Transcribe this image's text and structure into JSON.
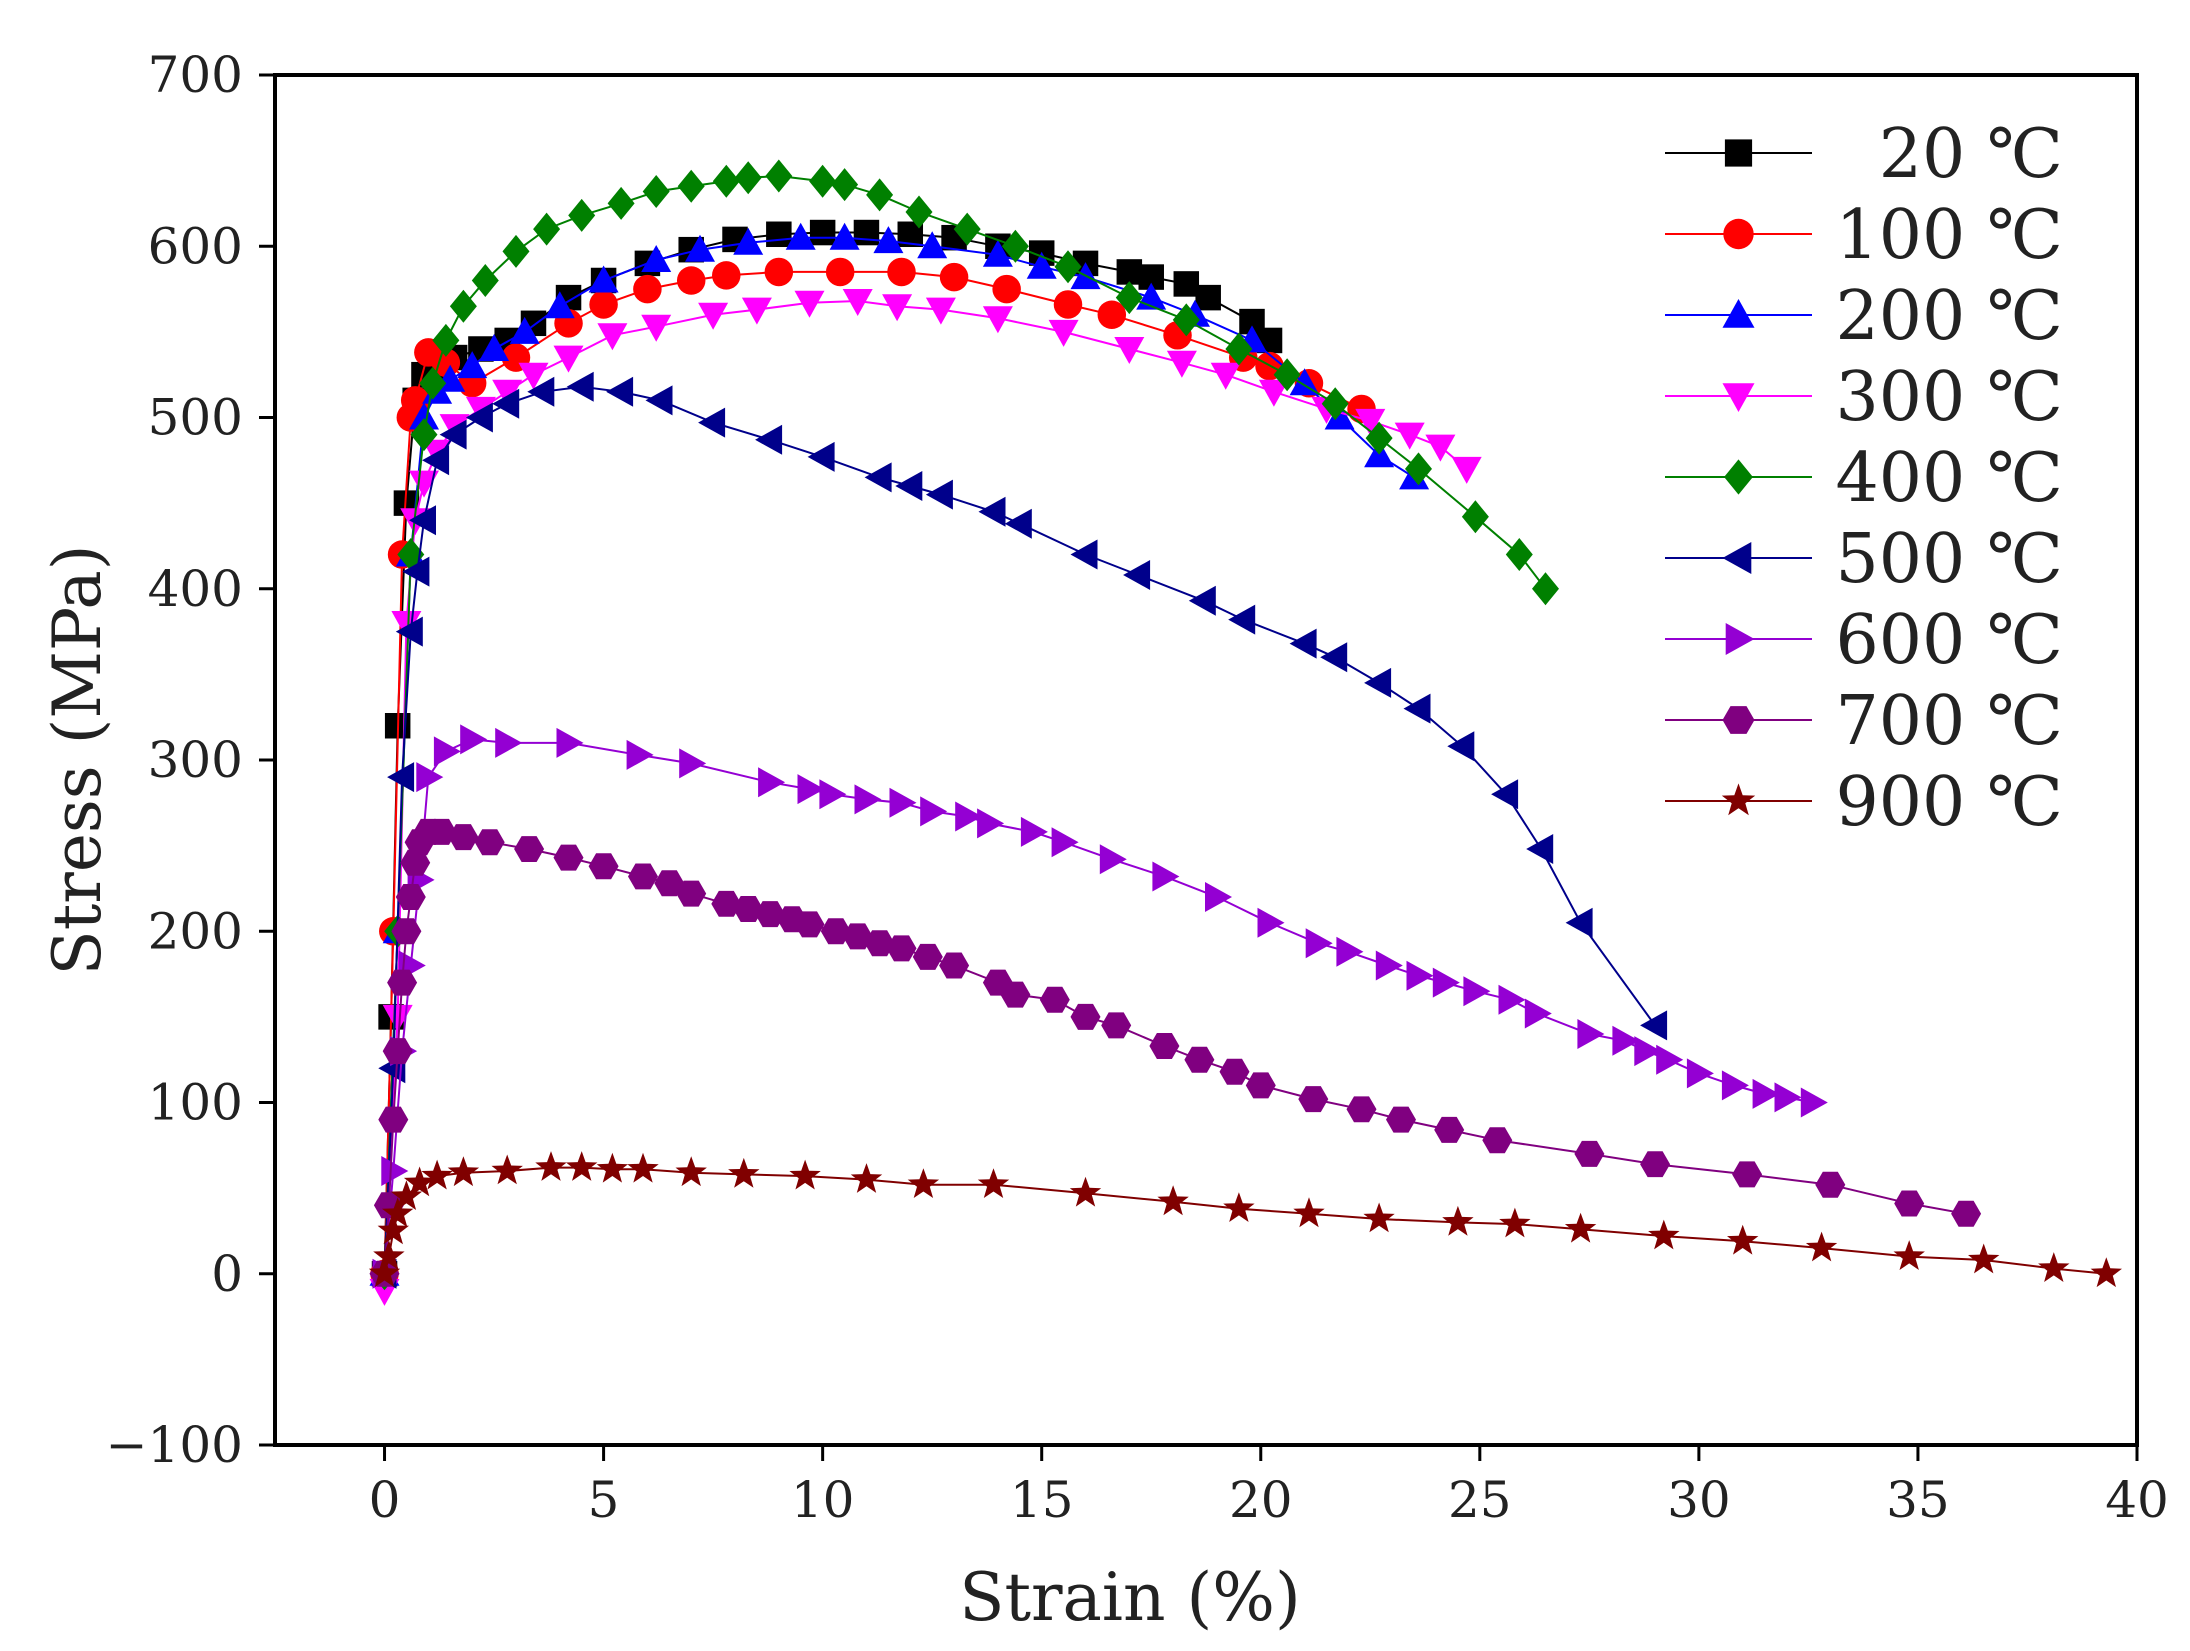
{
  "chart_data": {
    "type": "line",
    "title": "",
    "xlabel": "Strain (%)",
    "ylabel": "Stress (MPa)",
    "xlim": [
      -2.5,
      40
    ],
    "ylim": [
      -100,
      700
    ],
    "xticks": [
      0,
      5,
      10,
      15,
      20,
      25,
      30,
      35,
      40
    ],
    "yticks": [
      -100,
      0,
      100,
      200,
      300,
      400,
      500,
      600,
      700
    ],
    "legend_position": "top-right",
    "grid": false,
    "series": [
      {
        "name": "20 ℃",
        "color": "#000000",
        "marker": "square",
        "x": [
          0,
          0.15,
          0.3,
          0.5,
          0.7,
          0.9,
          1.2,
          1.6,
          2.2,
          2.8,
          3.4,
          4.2,
          5,
          6,
          7,
          8,
          9,
          10,
          11,
          12,
          13,
          14,
          15,
          16,
          17,
          17.5,
          18.3,
          18.8,
          19.8,
          20.2
        ],
        "y": [
          0,
          150,
          320,
          450,
          510,
          525,
          530,
          535,
          540,
          545,
          555,
          570,
          580,
          590,
          598,
          604,
          607,
          608,
          608,
          607,
          605,
          600,
          596,
          590,
          585,
          582,
          578,
          570,
          556,
          545
        ]
      },
      {
        "name": "100 ℃",
        "color": "#ff0000",
        "marker": "circle",
        "x": [
          0,
          0.2,
          0.4,
          0.6,
          0.7,
          1.0,
          1.4,
          2.0,
          3.0,
          4.2,
          5.0,
          6.0,
          7.0,
          7.8,
          9.0,
          10.4,
          11.8,
          13.0,
          14.2,
          15.6,
          16.6,
          18.1,
          19.6,
          20.2,
          21.1,
          22.3
        ],
        "y": [
          0,
          200,
          420,
          500,
          510,
          538,
          532,
          520,
          535,
          555,
          566,
          575,
          580,
          583,
          585,
          585,
          585,
          582,
          575,
          566,
          560,
          548,
          535,
          530,
          520,
          505
        ]
      },
      {
        "name": "200 ℃",
        "color": "#0000ff",
        "marker": "triangle-up",
        "x": [
          0,
          0.3,
          0.6,
          0.9,
          1.2,
          1.5,
          2.0,
          2.5,
          3.2,
          4.0,
          5.0,
          6.2,
          7.2,
          8.3,
          9.5,
          10.5,
          11.5,
          12.5,
          14.0,
          15.0,
          16.0,
          17.5,
          18.5,
          19.8,
          21.0,
          21.8,
          22.7,
          23.5
        ],
        "y": [
          0,
          200,
          420,
          500,
          515,
          522,
          530,
          540,
          550,
          565,
          580,
          592,
          598,
          602,
          605,
          605,
          603,
          600,
          595,
          588,
          582,
          570,
          560,
          545,
          520,
          500,
          478,
          465
        ]
      },
      {
        "name": "300 ℃",
        "color": "#ff00ff",
        "marker": "triangle-down",
        "x": [
          0,
          0.3,
          0.5,
          0.7,
          0.9,
          1.2,
          1.6,
          2.2,
          2.8,
          3.4,
          4.2,
          5.2,
          6.2,
          7.5,
          8.5,
          9.7,
          10.8,
          11.7,
          12.7,
          14.0,
          15.5,
          17.0,
          18.2,
          19.2,
          20.3,
          21.5,
          22.5,
          23.4,
          24.1,
          24.7
        ],
        "y": [
          -10,
          150,
          380,
          440,
          462,
          480,
          495,
          505,
          515,
          525,
          535,
          548,
          553,
          560,
          563,
          567,
          568,
          565,
          563,
          558,
          550,
          540,
          532,
          525,
          515,
          505,
          498,
          490,
          483,
          470
        ]
      },
      {
        "name": "400 ℃",
        "color": "#008000",
        "marker": "diamond",
        "x": [
          0,
          0.3,
          0.6,
          0.9,
          1.1,
          1.4,
          1.8,
          2.3,
          3.0,
          3.7,
          4.5,
          5.4,
          6.2,
          7.0,
          7.8,
          8.3,
          9.0,
          10.0,
          10.5,
          11.3,
          12.2,
          13.3,
          14.4,
          15.6,
          17.0,
          18.3,
          19.5,
          20.6,
          21.7,
          22.7,
          23.6,
          24.9,
          25.9,
          26.5
        ],
        "y": [
          0,
          200,
          420,
          490,
          520,
          545,
          565,
          580,
          597,
          610,
          618,
          625,
          632,
          635,
          638,
          640,
          641,
          638,
          636,
          630,
          620,
          610,
          600,
          588,
          570,
          557,
          540,
          525,
          508,
          488,
          470,
          442,
          420,
          400
        ]
      },
      {
        "name": "500 ℃",
        "color": "#00008b",
        "marker": "triangle-left",
        "x": [
          0,
          0.2,
          0.4,
          0.6,
          0.75,
          0.9,
          1.2,
          1.6,
          2.2,
          2.8,
          3.6,
          4.5,
          5.4,
          6.3,
          7.5,
          8.8,
          10.0,
          11.3,
          12.0,
          12.7,
          13.9,
          14.5,
          16.0,
          17.2,
          18.7,
          19.6,
          21.0,
          21.7,
          22.7,
          23.6,
          24.6,
          25.6,
          26.4,
          27.3,
          29.0
        ],
        "y": [
          0,
          120,
          290,
          375,
          410,
          440,
          475,
          490,
          500,
          508,
          515,
          518,
          515,
          510,
          497,
          487,
          477,
          465,
          460,
          455,
          445,
          438,
          420,
          408,
          393,
          382,
          368,
          360,
          345,
          330,
          308,
          280,
          248,
          205,
          145
        ]
      },
      {
        "name": "600 ℃",
        "color": "#9400d3",
        "marker": "triangle-right",
        "x": [
          0,
          0.2,
          0.4,
          0.6,
          0.8,
          1.0,
          1.4,
          2.0,
          2.8,
          4.2,
          5.8,
          7.0,
          8.8,
          9.7,
          10.2,
          11.0,
          11.8,
          12.5,
          13.3,
          13.8,
          14.8,
          15.5,
          16.6,
          17.8,
          19.0,
          20.2,
          21.3,
          22.0,
          22.9,
          23.6,
          24.2,
          24.9,
          25.7,
          26.3,
          27.5,
          28.3,
          28.8,
          29.3,
          30.0,
          30.8,
          31.5,
          32.0,
          32.6
        ],
        "y": [
          0,
          60,
          130,
          180,
          230,
          290,
          305,
          312,
          310,
          310,
          303,
          298,
          287,
          283,
          280,
          277,
          275,
          270,
          267,
          263,
          258,
          252,
          242,
          232,
          220,
          205,
          193,
          188,
          180,
          174,
          170,
          165,
          160,
          152,
          140,
          136,
          130,
          125,
          117,
          110,
          105,
          103,
          100
        ]
      },
      {
        "name": "700 ℃",
        "color": "#800080",
        "marker": "hexagon",
        "x": [
          0,
          0.1,
          0.2,
          0.3,
          0.4,
          0.5,
          0.6,
          0.7,
          0.8,
          1.0,
          1.3,
          1.8,
          2.4,
          3.3,
          4.2,
          5.0,
          5.9,
          6.5,
          7.0,
          7.8,
          8.3,
          8.8,
          9.3,
          9.7,
          10.3,
          10.8,
          11.3,
          11.8,
          12.4,
          13.0,
          14.0,
          14.4,
          15.3,
          16.0,
          16.7,
          17.8,
          18.6,
          19.4,
          20.0,
          21.2,
          22.3,
          23.2,
          24.3,
          25.4,
          27.5,
          29.0,
          31.1,
          33.0,
          34.8,
          36.1
        ],
        "y": [
          0,
          40,
          90,
          130,
          170,
          200,
          220,
          240,
          252,
          258,
          258,
          255,
          252,
          248,
          243,
          238,
          232,
          228,
          222,
          216,
          213,
          210,
          207,
          204,
          200,
          197,
          193,
          190,
          185,
          180,
          170,
          163,
          160,
          150,
          145,
          133,
          125,
          118,
          110,
          102,
          96,
          90,
          84,
          78,
          70,
          64,
          58,
          52,
          41,
          35
        ]
      },
      {
        "name": "900 ℃",
        "color": "#800000",
        "marker": "star",
        "x": [
          0,
          0.1,
          0.2,
          0.3,
          0.5,
          0.8,
          1.2,
          1.8,
          2.8,
          3.8,
          4.5,
          5.2,
          5.9,
          7.0,
          8.2,
          9.6,
          11.0,
          12.3,
          13.9,
          16.0,
          18.0,
          19.5,
          21.1,
          22.7,
          24.5,
          25.8,
          27.3,
          29.2,
          31.0,
          32.8,
          34.8,
          36.5,
          38.1,
          39.3
        ],
        "y": [
          0,
          10,
          25,
          35,
          45,
          53,
          57,
          59,
          60,
          62,
          62,
          61,
          61,
          59,
          58,
          57,
          55,
          52,
          52,
          47,
          42,
          38,
          35,
          32,
          30,
          29,
          26,
          22,
          19,
          15,
          10,
          8,
          3,
          0
        ]
      }
    ]
  }
}
